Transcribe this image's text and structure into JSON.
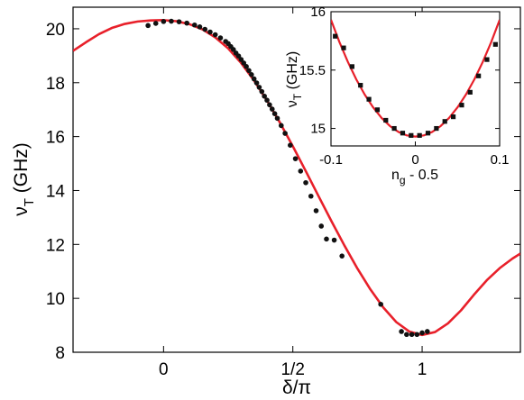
{
  "chart_data": [
    {
      "type": "scatter",
      "panel": "main",
      "xlabel": "δ/π",
      "ylabel_symbol": "ν",
      "ylabel_subscript": "T",
      "ylabel_unit": "(GHz)",
      "xlim": [
        -0.35,
        1.38
      ],
      "ylim": [
        8,
        20.8
      ],
      "x_ticks": [
        0,
        0.5,
        1
      ],
      "x_tick_labels": [
        "0",
        "1/2",
        "1"
      ],
      "y_ticks": [
        8,
        10,
        12,
        14,
        16,
        18,
        20
      ],
      "y_tick_labels": [
        "8",
        "10",
        "12",
        "14",
        "16",
        "18",
        "20"
      ],
      "grid": false,
      "series": [
        {
          "kind": "line",
          "color": "#e8202a",
          "x": [
            -0.35,
            -0.3,
            -0.25,
            -0.2,
            -0.15,
            -0.1,
            -0.05,
            0,
            0.05,
            0.1,
            0.15,
            0.2,
            0.25,
            0.3,
            0.35,
            0.4,
            0.45,
            0.5,
            0.55,
            0.6,
            0.65,
            0.7,
            0.75,
            0.8,
            0.85,
            0.9,
            0.95,
            1.0,
            1.05,
            1.1,
            1.15,
            1.2,
            1.25,
            1.3,
            1.35,
            1.38
          ],
          "y": [
            19.18,
            19.5,
            19.8,
            20.03,
            20.18,
            20.27,
            20.31,
            20.32,
            20.28,
            20.17,
            19.98,
            19.68,
            19.27,
            18.73,
            18.08,
            17.34,
            16.52,
            15.64,
            14.72,
            13.78,
            12.85,
            11.95,
            11.1,
            10.33,
            9.66,
            9.12,
            8.77,
            8.64,
            8.75,
            9.07,
            9.55,
            10.13,
            10.67,
            11.12,
            11.48,
            11.66
          ]
        },
        {
          "kind": "points",
          "color": "#111111",
          "x": [
            -0.06,
            -0.03,
            0,
            0.03,
            0.06,
            0.09,
            0.12,
            0.14,
            0.16,
            0.18,
            0.2,
            0.22,
            0.24,
            0.25,
            0.26,
            0.27,
            0.28,
            0.29,
            0.3,
            0.31,
            0.32,
            0.33,
            0.34,
            0.35,
            0.36,
            0.37,
            0.38,
            0.39,
            0.4,
            0.41,
            0.42,
            0.43,
            0.44,
            0.455,
            0.47,
            0.49,
            0.51,
            0.53,
            0.55,
            0.57,
            0.59,
            0.61,
            0.63,
            0.66,
            0.69,
            0.84,
            0.92,
            0.94,
            0.96,
            0.98,
            1.0,
            1.02
          ],
          "y": [
            20.12,
            20.2,
            20.27,
            20.28,
            20.26,
            20.21,
            20.14,
            20.07,
            19.98,
            19.88,
            19.78,
            19.66,
            19.53,
            19.45,
            19.34,
            19.23,
            19.1,
            18.99,
            18.86,
            18.73,
            18.6,
            18.45,
            18.3,
            18.14,
            17.99,
            17.83,
            17.67,
            17.5,
            17.35,
            17.18,
            17.02,
            16.85,
            16.68,
            16.41,
            16.12,
            15.68,
            15.18,
            14.72,
            14.29,
            13.79,
            13.25,
            12.68,
            12.2,
            12.16,
            11.57,
            9.78,
            8.77,
            8.66,
            8.66,
            8.66,
            8.72,
            8.77
          ]
        }
      ]
    },
    {
      "type": "scatter",
      "panel": "inset",
      "xlabel_symbol": "n",
      "xlabel_subscript": "g",
      "xlabel_rest": " - 0.5",
      "ylabel_symbol": "ν",
      "ylabel_subscript": "T",
      "ylabel_unit": "(GHz)",
      "xlim": [
        -0.1,
        0.1
      ],
      "ylim": [
        14.85,
        16
      ],
      "x_ticks": [
        -0.1,
        0,
        0.1
      ],
      "x_tick_labels": [
        "-0.1",
        "0",
        "0.1"
      ],
      "y_ticks": [
        15,
        15.5,
        16
      ],
      "y_tick_labels": [
        "15",
        "15.5",
        "16"
      ],
      "grid": false,
      "series": [
        {
          "kind": "line",
          "color": "#e8202a",
          "x": [
            -0.1,
            -0.09,
            -0.08,
            -0.07,
            -0.06,
            -0.05,
            -0.04,
            -0.03,
            -0.02,
            -0.01,
            0,
            0.01,
            0.02,
            0.03,
            0.04,
            0.05,
            0.06,
            0.07,
            0.08,
            0.09,
            0.1
          ],
          "y": [
            15.93,
            15.74,
            15.57,
            15.42,
            15.29,
            15.18,
            15.09,
            15.02,
            14.97,
            14.94,
            14.93,
            14.94,
            14.97,
            15.02,
            15.09,
            15.18,
            15.29,
            15.42,
            15.57,
            15.74,
            15.93
          ]
        },
        {
          "kind": "points",
          "color": "#111111",
          "x": [
            -0.095,
            -0.085,
            -0.075,
            -0.065,
            -0.055,
            -0.045,
            -0.035,
            -0.025,
            -0.015,
            -0.005,
            0.005,
            0.015,
            0.025,
            0.035,
            0.045,
            0.055,
            0.065,
            0.075,
            0.085,
            0.095
          ],
          "y": [
            15.79,
            15.69,
            15.53,
            15.37,
            15.25,
            15.16,
            15.07,
            15.0,
            14.96,
            14.94,
            14.94,
            14.96,
            15.0,
            15.06,
            15.1,
            15.2,
            15.31,
            15.45,
            15.59,
            15.72
          ]
        }
      ]
    }
  ]
}
